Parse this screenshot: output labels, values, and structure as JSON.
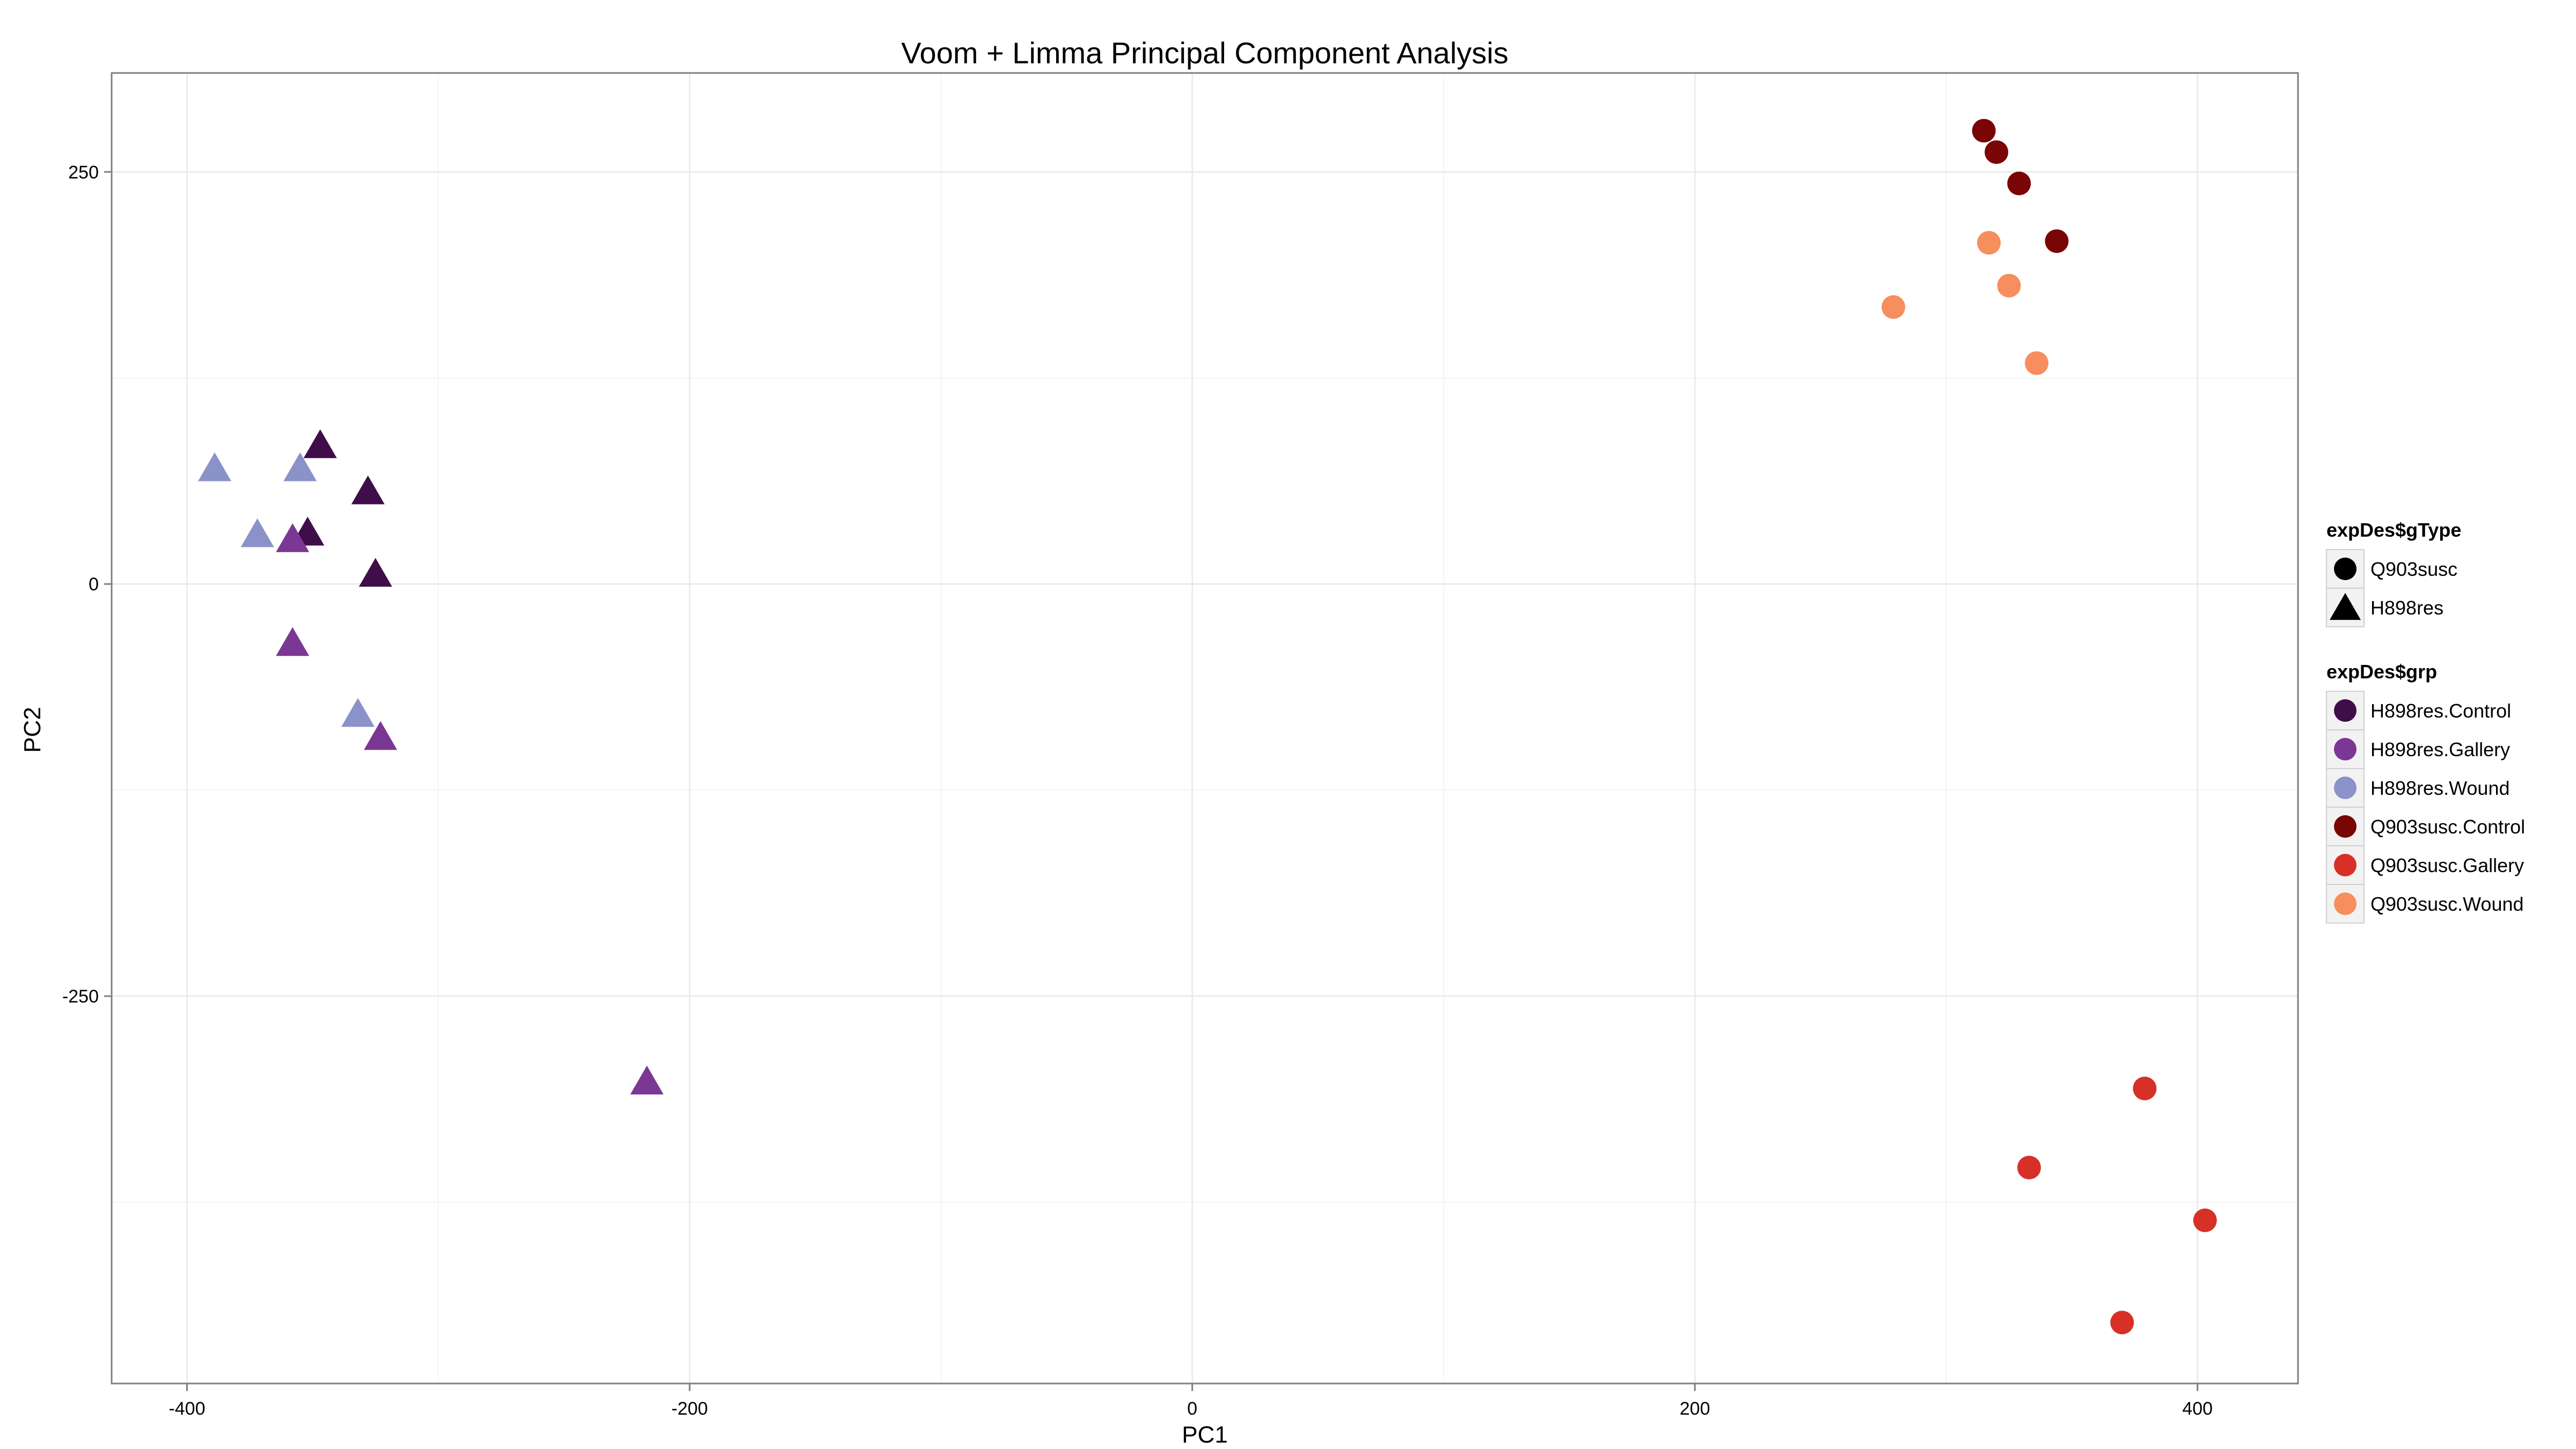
{
  "chart_data": {
    "type": "scatter",
    "title": "Voom + Limma Principal Component Analysis",
    "xlabel": "PC1",
    "ylabel": "PC2",
    "xlim": [
      -430,
      440
    ],
    "ylim": [
      -485,
      310
    ],
    "x_ticks": [
      -400,
      -200,
      0,
      200,
      400
    ],
    "y_ticks": [
      -250,
      0,
      250
    ],
    "grid": true,
    "legend_position": "right",
    "legends": [
      {
        "title": "expDes$gType",
        "kind": "shape",
        "entries": [
          {
            "label": "Q903susc",
            "shape": "circle",
            "color": "#000000"
          },
          {
            "label": "H898res",
            "shape": "triangle",
            "color": "#000000"
          }
        ]
      },
      {
        "title": "expDes$grp",
        "kind": "color",
        "entries": [
          {
            "label": "H898res.Control",
            "shape": "circle",
            "color": "#3f0d4a"
          },
          {
            "label": "H898res.Gallery",
            "shape": "circle",
            "color": "#7b3794"
          },
          {
            "label": "H898res.Wound",
            "shape": "circle",
            "color": "#8a92c9"
          },
          {
            "label": "Q903susc.Control",
            "shape": "circle",
            "color": "#7a0505"
          },
          {
            "label": "Q903susc.Gallery",
            "shape": "circle",
            "color": "#d73027"
          },
          {
            "label": "Q903susc.Wound",
            "shape": "circle",
            "color": "#f68e5d"
          }
        ]
      }
    ],
    "series": [
      {
        "name": "H898res.Control",
        "shape": "triangle",
        "color": "#3f0d4a",
        "points": [
          [
            -347,
            83
          ],
          [
            -328,
            55
          ],
          [
            -352,
            30
          ],
          [
            -325,
            5
          ]
        ]
      },
      {
        "name": "H898res.Gallery",
        "shape": "triangle",
        "color": "#7b3794",
        "points": [
          [
            -358,
            26
          ],
          [
            -358,
            -37
          ],
          [
            -323,
            -94
          ],
          [
            -217,
            -303
          ]
        ]
      },
      {
        "name": "H898res.Wound",
        "shape": "triangle",
        "color": "#8a92c9",
        "points": [
          [
            -389,
            69
          ],
          [
            -355,
            69
          ],
          [
            -372,
            29
          ],
          [
            -332,
            -80
          ]
        ]
      },
      {
        "name": "Q903susc.Control",
        "shape": "circle",
        "color": "#7a0505",
        "points": [
          [
            315,
            275
          ],
          [
            320,
            262
          ],
          [
            329,
            243
          ],
          [
            344,
            208
          ]
        ]
      },
      {
        "name": "Q903susc.Gallery",
        "shape": "circle",
        "color": "#d73027",
        "points": [
          [
            379,
            -306
          ],
          [
            333,
            -354
          ],
          [
            403,
            -386
          ],
          [
            370,
            -448
          ]
        ]
      },
      {
        "name": "Q903susc.Wound",
        "shape": "circle",
        "color": "#f68e5d",
        "points": [
          [
            317,
            207
          ],
          [
            325,
            181
          ],
          [
            336,
            134
          ],
          [
            279,
            168
          ]
        ]
      }
    ]
  }
}
